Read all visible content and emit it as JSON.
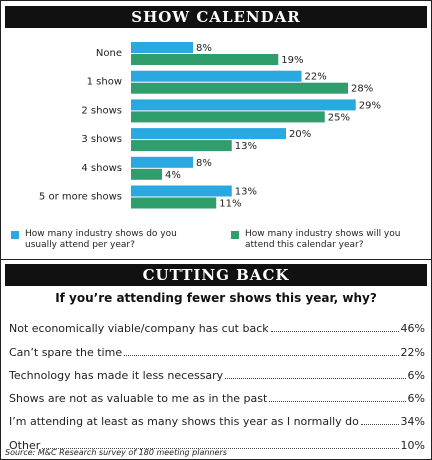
{
  "chart_data": {
    "type": "bar",
    "orientation": "horizontal",
    "title": "SHOW CALENDAR",
    "categories": [
      "None",
      "1 show",
      "2 shows",
      "3 shows",
      "4 shows",
      "5 or more shows"
    ],
    "series": [
      {
        "name": "How many industry shows do you usually attend per year?",
        "color": "#2aa8e0",
        "values": [
          8,
          22,
          29,
          20,
          8,
          13
        ],
        "value_labels": [
          "8%",
          "22%",
          "29%",
          "20%",
          "8%",
          "13%"
        ]
      },
      {
        "name": "How many industry shows will you attend this calendar year?",
        "color": "#2f9e6c",
        "values": [
          19,
          28,
          25,
          13,
          4,
          11
        ],
        "value_labels": [
          "19%",
          "28%",
          "25%",
          "13%",
          "4%",
          "11%"
        ]
      }
    ]
  },
  "cutting_back": {
    "title": "CUTTING BACK",
    "question": "If you’re attending fewer shows this year, why?",
    "items": [
      {
        "label": "Not economically viable/company has cut back",
        "value": "46%"
      },
      {
        "label": "Can’t spare the time",
        "value": "22%"
      },
      {
        "label": "Technology has made it less necessary",
        "value": "6%"
      },
      {
        "label": "Shows are not as valuable to me as in the past",
        "value": "6%"
      },
      {
        "label": "I’m attending at least as many shows this year as I normally do",
        "value": "34%"
      },
      {
        "label": "Other",
        "value": "10%"
      }
    ],
    "source": "Source: M&C Research survey of 180 meeting planners"
  }
}
